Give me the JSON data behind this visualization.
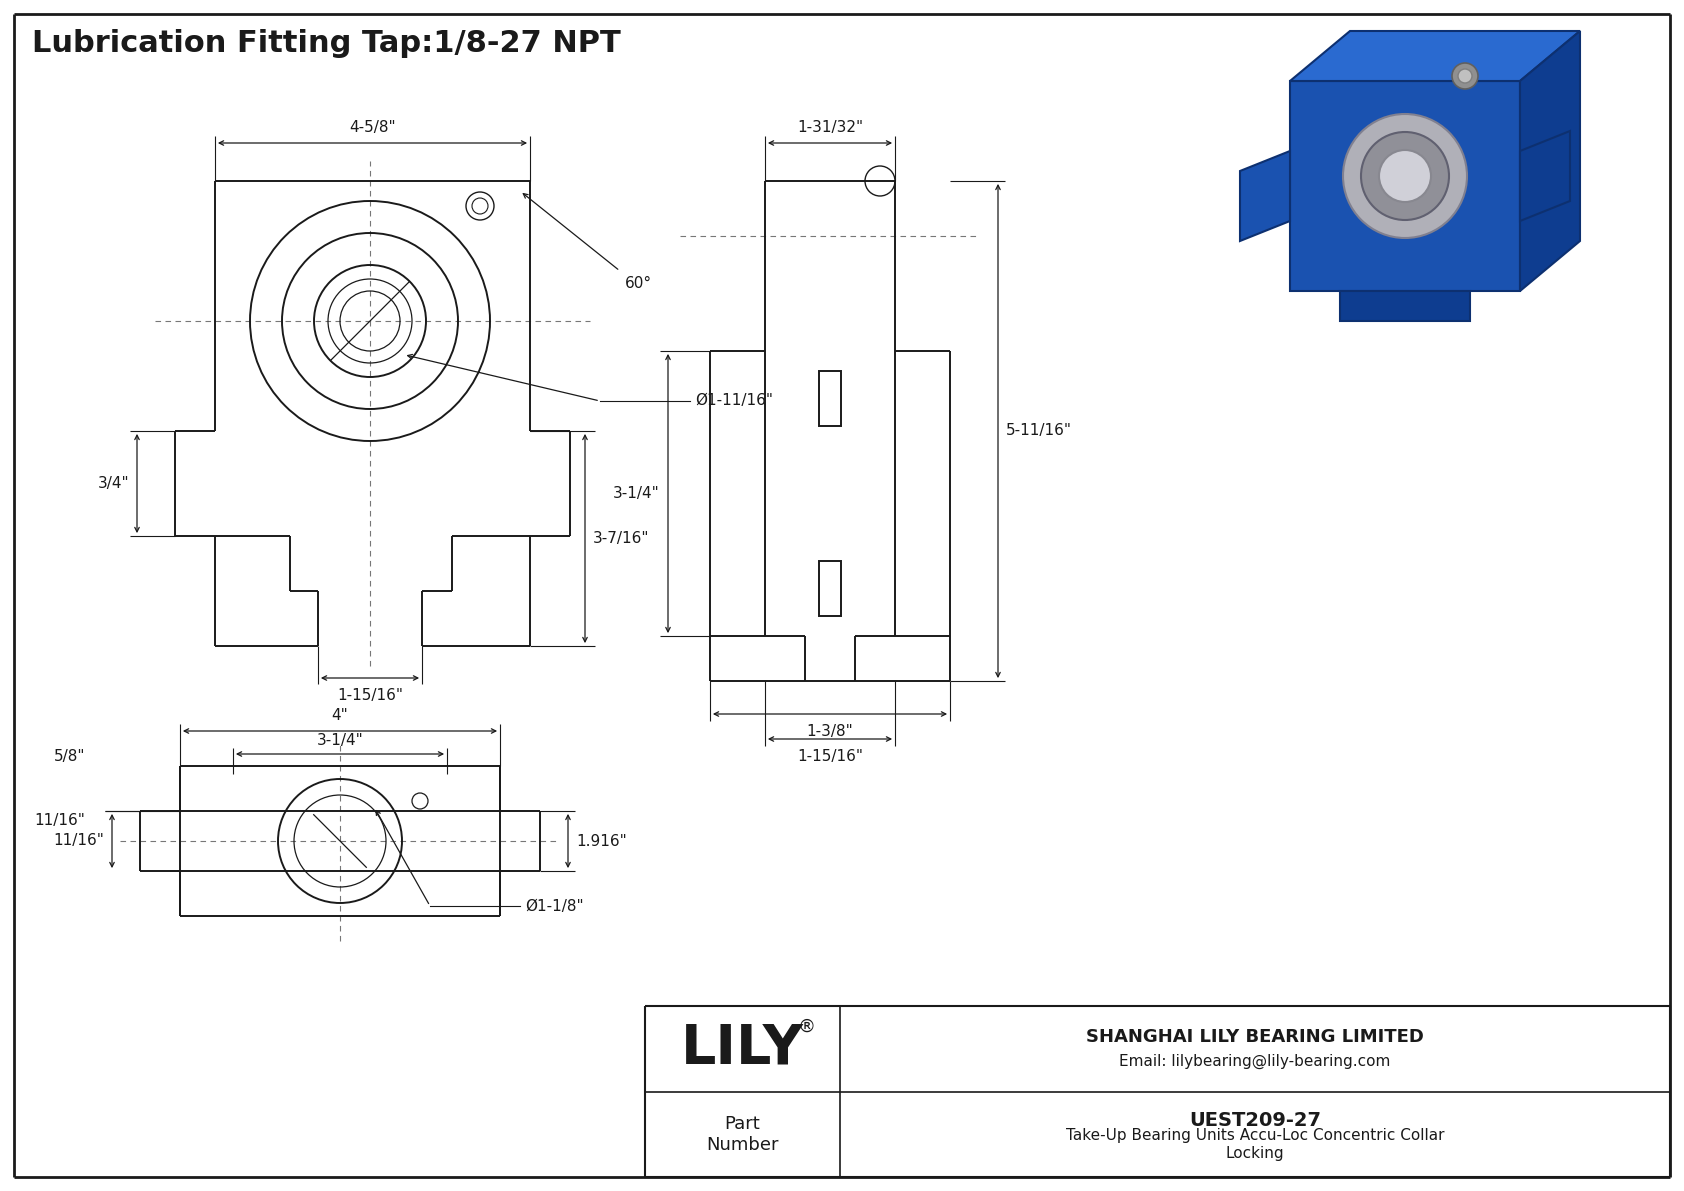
{
  "title": "Lubrication Fitting Tap:1/8-27 NPT",
  "background_color": "#ffffff",
  "line_color": "#1a1a1a",
  "dim_color": "#1a1a1a",
  "title_fontsize": 22,
  "dim_fontsize": 11,
  "company_name": "SHANGHAI LILY BEARING LIMITED",
  "company_email": "Email: lilybearing@lily-bearing.com",
  "part_number": "UEST209-27",
  "part_description": "Take-Up Bearing Units Accu-Loc Concentric Collar\nLocking",
  "dims_front": {
    "width_label": "4-5/8\"",
    "angle_label": "60°",
    "height_right_label": "3-7/16\"",
    "height_left_label": "3/4\"",
    "slot_width_label": "1-15/16\"",
    "bore_label": "Ø1-11/16\""
  },
  "dims_side": {
    "top_width_label": "1-31/32\"",
    "height_label": "3-1/4\"",
    "total_height_label": "5-11/16\"",
    "bottom_width1_label": "1-3/8\"",
    "bottom_width2_label": "1-15/16\""
  },
  "dims_bottom": {
    "outer_width_label": "4\"",
    "inner_width_label": "3-1/4\"",
    "side_label": "11/16\"",
    "height_label": "1.916\"",
    "height_left_label": "5/8\"",
    "bore_label": "Ø1-1/8\""
  }
}
